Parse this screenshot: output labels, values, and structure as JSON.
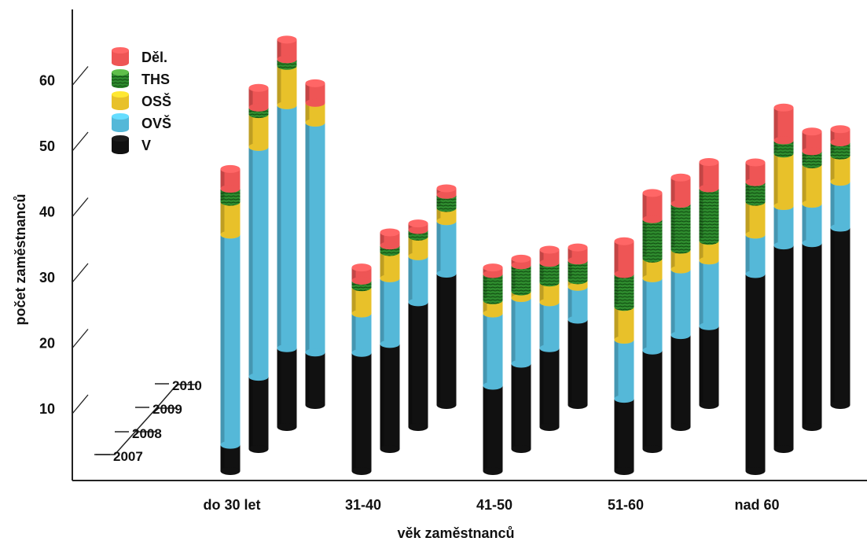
{
  "chart_data": {
    "type": "bar",
    "stacked": true,
    "three_d": true,
    "title": "",
    "xlabel": "věk zaměstnanců",
    "ylabel": "počet zaměstnanců",
    "categories": [
      "do 30 let",
      "31-40",
      "41-50",
      "51-60",
      "nad 60"
    ],
    "depth_labels": [
      "2007",
      "2008",
      "2009",
      "2010"
    ],
    "yticks": [
      10,
      20,
      30,
      40,
      50,
      60
    ],
    "legend_position": "top-left",
    "series": [
      {
        "name": "V",
        "color": "#111111",
        "values": [
          [
            4,
            11,
            12,
            8
          ],
          [
            18,
            16,
            19,
            20
          ],
          [
            13,
            13,
            12,
            13
          ],
          [
            11,
            15,
            14,
            12
          ],
          [
            30,
            31,
            28,
            27
          ]
        ]
      },
      {
        "name": "OVŠ",
        "color": "#55b8d8",
        "values": [
          [
            32,
            35,
            37,
            35
          ],
          [
            6,
            10,
            7,
            8
          ],
          [
            11,
            10,
            7,
            5
          ],
          [
            9,
            11,
            10,
            10
          ],
          [
            6,
            6,
            6,
            7
          ]
        ]
      },
      {
        "name": "OSŠ",
        "color": "#e8c12a",
        "values": [
          [
            5,
            5,
            6,
            3
          ],
          [
            4,
            4,
            3,
            2
          ],
          [
            2,
            1,
            3,
            1
          ],
          [
            5,
            3,
            3,
            3
          ],
          [
            5,
            8,
            6,
            4
          ]
        ]
      },
      {
        "name": "THS",
        "color": "#3a9a3a",
        "values": [
          [
            2,
            1,
            1,
            0
          ],
          [
            1,
            1,
            1,
            2
          ],
          [
            4,
            4,
            3,
            3
          ],
          [
            5,
            6,
            7,
            8
          ],
          [
            3,
            2,
            2,
            2
          ]
        ]
      },
      {
        "name": "Děl.",
        "color": "#ee5555",
        "values": [
          [
            3,
            3,
            3,
            3
          ],
          [
            2,
            2,
            1,
            1
          ],
          [
            1,
            1,
            2,
            2
          ],
          [
            5,
            4,
            4,
            4
          ],
          [
            3,
            5,
            3,
            2
          ]
        ]
      }
    ]
  }
}
